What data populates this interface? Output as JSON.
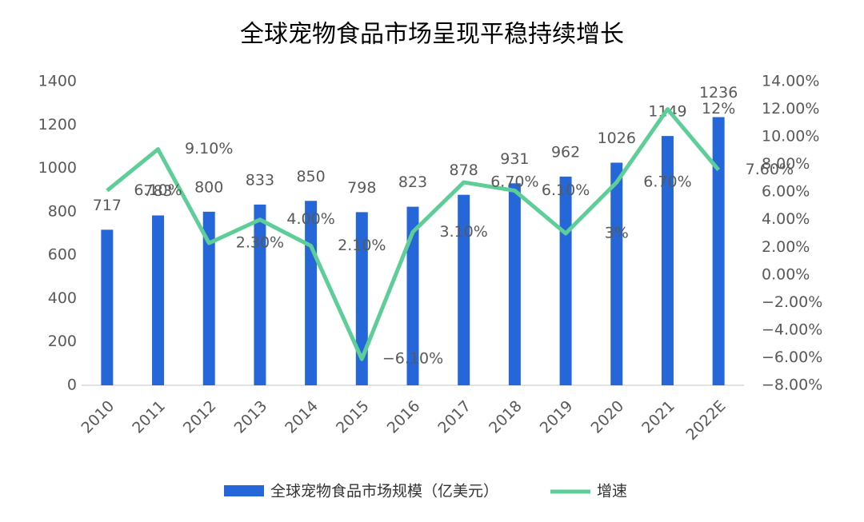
{
  "chart_data": {
    "type": "bar-line",
    "title": "全球宠物食品市场呈现平稳持续增长",
    "categories": [
      "2010",
      "2011",
      "2012",
      "2013",
      "2014",
      "2015",
      "2016",
      "2017",
      "2018",
      "2019",
      "2020",
      "2021",
      "2022E"
    ],
    "series": [
      {
        "name": "全球宠物食品市场规模（亿美元）",
        "type": "bar",
        "color": "#2567d8",
        "values": [
          717,
          783,
          800,
          833,
          850,
          798,
          823,
          878,
          931,
          962,
          1026,
          1149,
          1236
        ]
      },
      {
        "name": "增速",
        "type": "line",
        "axis": "y2",
        "color": "#5dce98",
        "values": [
          6.1,
          9.1,
          2.3,
          4.0,
          2.1,
          -6.1,
          3.1,
          6.7,
          6.1,
          3,
          6.7,
          12,
          7.6
        ],
        "value_labels": [
          "6.10%",
          "9.10%",
          "2.30%",
          "4.00%",
          "2.10%",
          "−6.10%",
          "3.10%",
          "6.70%",
          "6.10%",
          "3%",
          "6.70%",
          "12%",
          "7.60%"
        ]
      }
    ],
    "ylim": [
      0,
      1400
    ],
    "yticks": [
      0,
      200,
      400,
      600,
      800,
      1000,
      1200,
      1400
    ],
    "y2lim": [
      -8,
      14
    ],
    "y2ticks": [
      {
        "value": -8,
        "label": "−8.00%"
      },
      {
        "value": -6,
        "label": "−6.00%"
      },
      {
        "value": -4,
        "label": "−4.00%"
      },
      {
        "value": -2,
        "label": "−2.00%"
      },
      {
        "value": 0,
        "label": "0.00%"
      },
      {
        "value": 2,
        "label": "2.00%"
      },
      {
        "value": 4,
        "label": "4.00%"
      },
      {
        "value": 6,
        "label": "6.00%"
      },
      {
        "value": 8,
        "label": "8.00%"
      },
      {
        "value": 10,
        "label": "10.00%"
      },
      {
        "value": 12,
        "label": "12.00%"
      },
      {
        "value": 14,
        "label": "14.00%"
      }
    ],
    "grid": false,
    "legend": "bottom"
  }
}
